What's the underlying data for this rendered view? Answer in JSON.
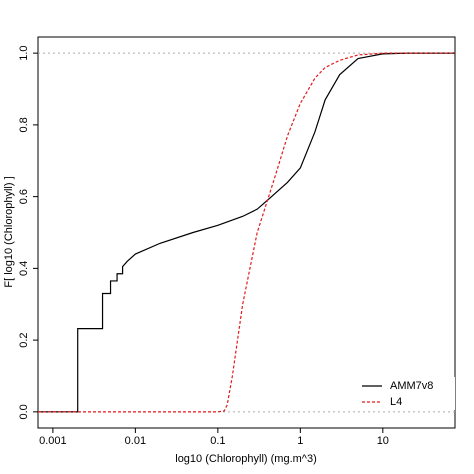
{
  "chart_data": {
    "type": "line",
    "xlabel": "log10 (Chlorophyll) (mg.m^3)",
    "ylabel": "F[ log10 (Chlorophyll) ]",
    "xscale": "log",
    "xlim": [
      0.00066,
      75
    ],
    "ylim": [
      -0.045,
      1.045
    ],
    "xticks": [
      0.001,
      0.01,
      0.1,
      1,
      10
    ],
    "yticks": [
      {
        "value": 0,
        "label": "0.0"
      },
      0.2,
      0.4,
      0.6,
      0.8,
      {
        "value": 1,
        "label": "1.0"
      }
    ],
    "reference_lines": [
      0,
      1
    ],
    "reference_color": "#aaaaaa",
    "legend": "bottom-right",
    "series": [
      {
        "name": "AMM7v8",
        "color": "#000000",
        "dash": false,
        "x": [
          0.00066,
          0.002,
          0.002,
          0.004,
          0.004,
          0.005,
          0.005,
          0.006,
          0.006,
          0.007,
          0.007,
          0.008,
          0.01,
          0.02,
          0.05,
          0.1,
          0.2,
          0.3,
          0.4,
          0.5,
          0.7,
          1,
          1.5,
          2,
          3,
          5,
          10,
          20,
          75
        ],
        "values": [
          0,
          0,
          0.232,
          0.232,
          0.33,
          0.33,
          0.365,
          0.365,
          0.385,
          0.385,
          0.405,
          0.42,
          0.44,
          0.47,
          0.5,
          0.52,
          0.545,
          0.565,
          0.59,
          0.61,
          0.64,
          0.68,
          0.78,
          0.87,
          0.94,
          0.985,
          0.998,
          1,
          1
        ]
      },
      {
        "name": "L4",
        "color": "#e41a1c",
        "dash": true,
        "x": [
          0.00066,
          0.1,
          0.12,
          0.13,
          0.15,
          0.2,
          0.3,
          0.4,
          0.5,
          0.7,
          1,
          1.5,
          2,
          3,
          5,
          10,
          75
        ],
        "values": [
          0,
          0,
          0.003,
          0.02,
          0.1,
          0.3,
          0.5,
          0.59,
          0.66,
          0.77,
          0.86,
          0.93,
          0.96,
          0.98,
          0.995,
          1,
          1
        ]
      }
    ]
  }
}
